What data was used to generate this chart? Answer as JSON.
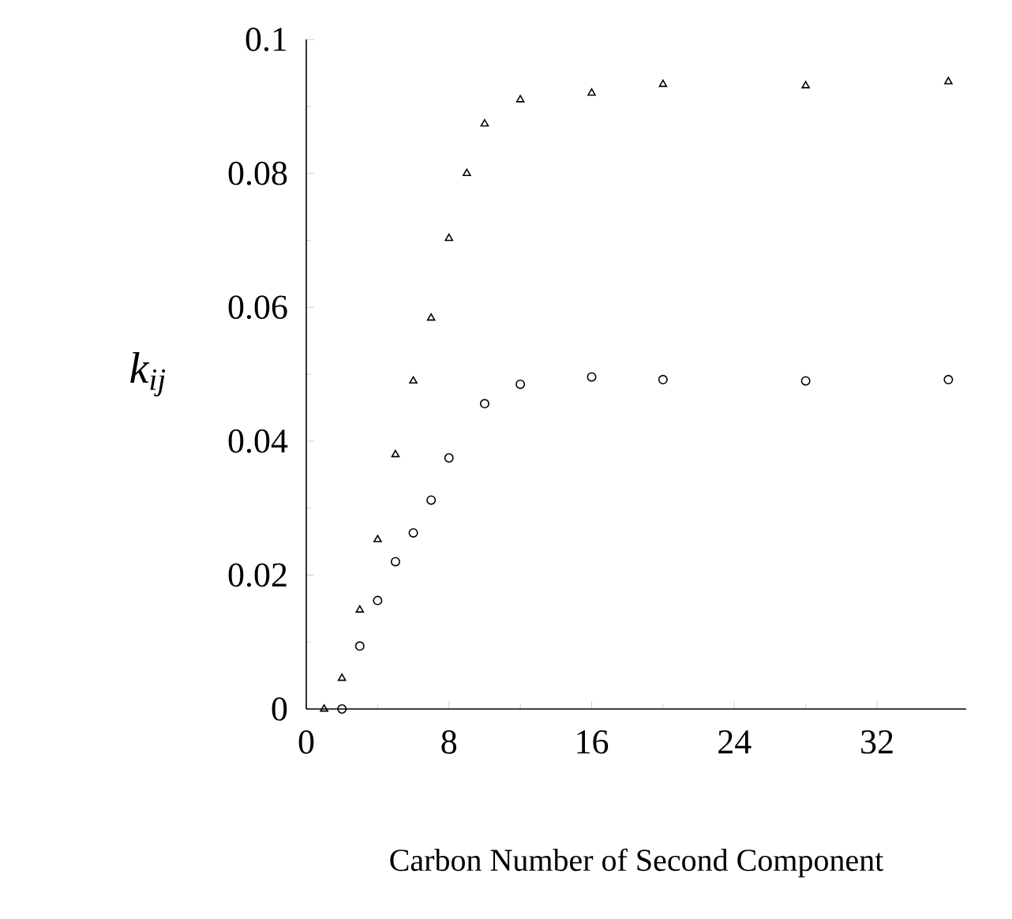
{
  "chart_data": {
    "type": "scatter",
    "xlabel": "Carbon Number of Second Component",
    "ylabel": "k$_{ij}$",
    "xlim": [
      0,
      37
    ],
    "ylim": [
      0,
      0.1
    ],
    "xticks": [
      0,
      8,
      16,
      24,
      32
    ],
    "yticks": [
      0,
      0.02,
      0.04,
      0.06,
      0.08,
      0.1
    ],
    "series": [
      {
        "color": "#000000",
        "marker": "triangle",
        "x": [
          1,
          2,
          3,
          4,
          5,
          6,
          7,
          8,
          9,
          10,
          12,
          16,
          20,
          28,
          36
        ],
        "values": [
          0,
          0.0046,
          0.0148,
          0.0253,
          0.038,
          0.049,
          0.0584,
          0.0703,
          0.08,
          0.0874,
          0.091,
          0.092,
          0.0933,
          0.0931,
          0.0937
        ]
      },
      {
        "color": "#000000",
        "marker": "circle",
        "x": [
          2,
          3,
          4,
          5,
          6,
          7,
          8,
          10,
          12,
          16,
          20,
          28,
          36
        ],
        "values": [
          0,
          0.0094,
          0.0162,
          0.022,
          0.0263,
          0.0312,
          0.0375,
          0.0456,
          0.0485,
          0.0496,
          0.0492,
          0.049,
          0.0492
        ]
      }
    ]
  }
}
